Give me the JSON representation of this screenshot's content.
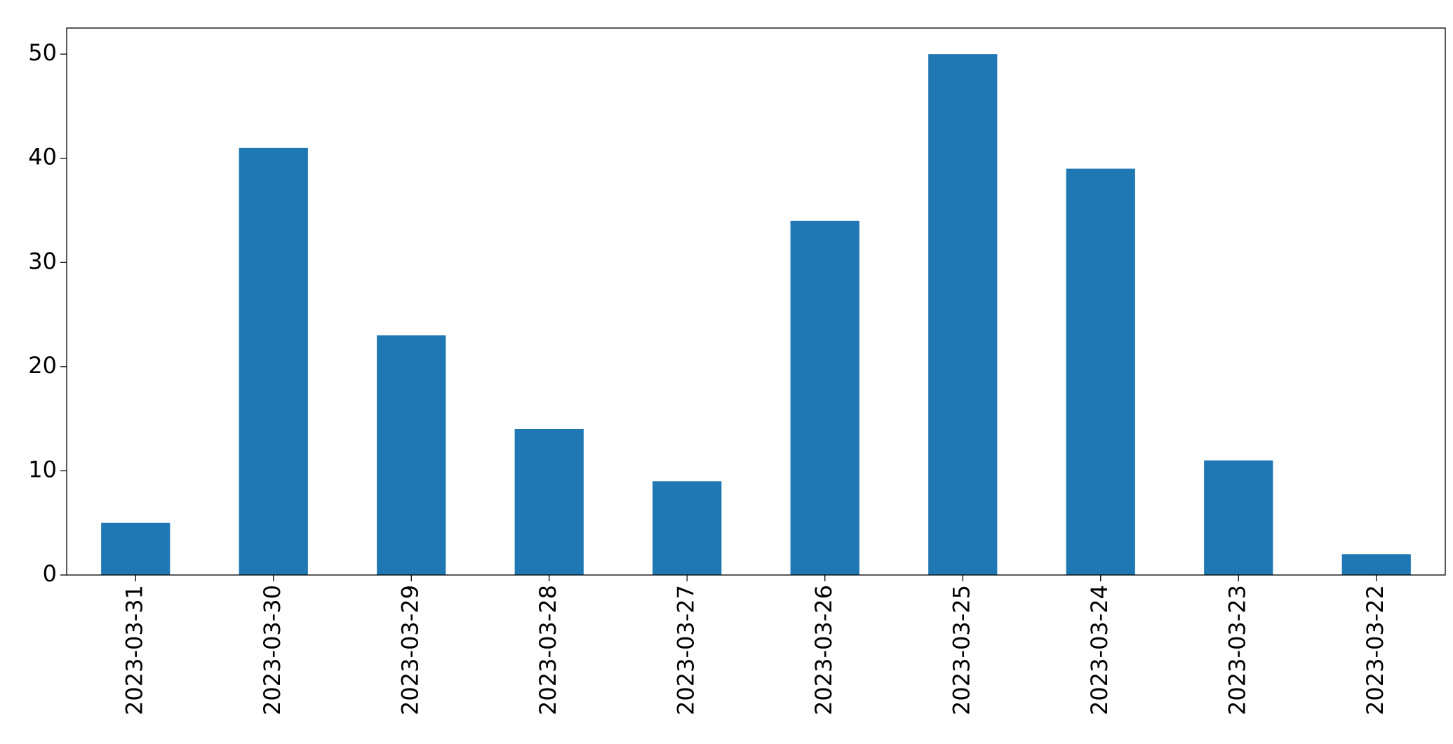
{
  "chart_data": {
    "type": "bar",
    "categories": [
      "2023-03-31",
      "2023-03-30",
      "2023-03-29",
      "2023-03-28",
      "2023-03-27",
      "2023-03-26",
      "2023-03-25",
      "2023-03-24",
      "2023-03-23",
      "2023-03-22"
    ],
    "values": [
      5,
      41,
      23,
      14,
      9,
      34,
      50,
      39,
      11,
      2
    ],
    "color": "#1f77b4",
    "ylim": [
      0,
      52.5
    ],
    "yticks": [
      0,
      10,
      20,
      30,
      40,
      50
    ],
    "grid": false
  }
}
